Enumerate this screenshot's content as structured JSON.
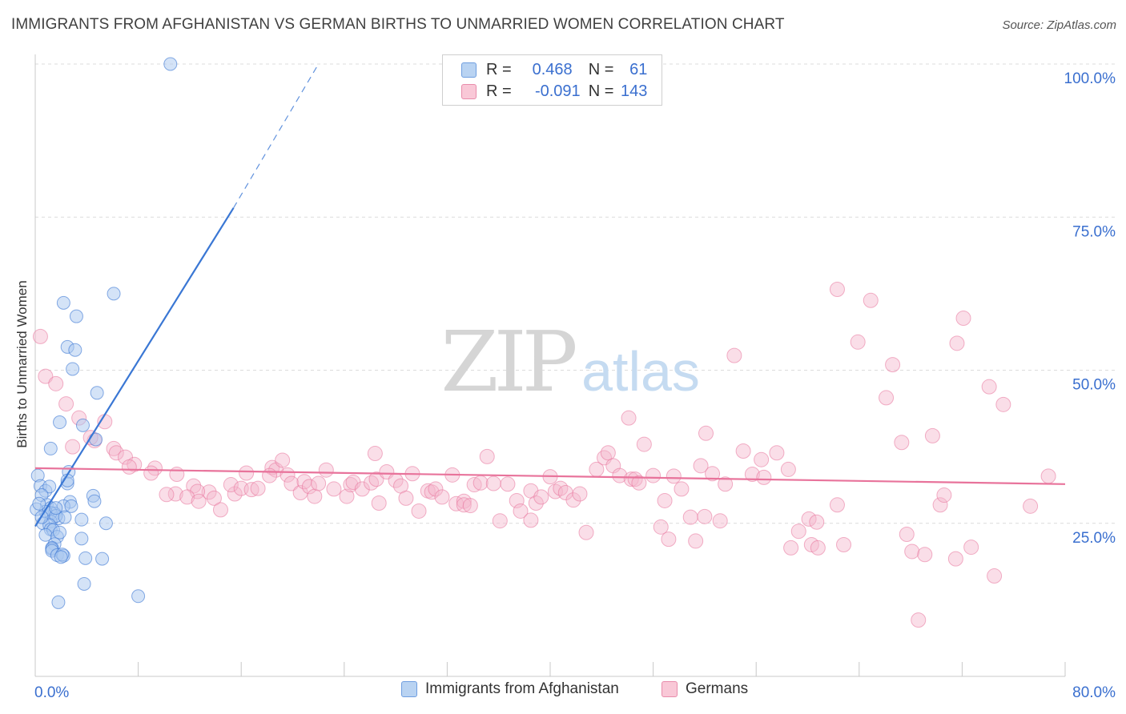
{
  "title": "IMMIGRANTS FROM AFGHANISTAN VS GERMAN BIRTHS TO UNMARRIED WOMEN CORRELATION CHART",
  "source": "Source: ZipAtlas.com",
  "watermark": {
    "zip": "ZIP",
    "atlas": "atlas"
  },
  "legend": {
    "r_label": "R =",
    "n_label": "N =",
    "series1": {
      "r": "0.468",
      "n": "61"
    },
    "series2": {
      "r": "-0.091",
      "n": "143"
    }
  },
  "colors": {
    "blue": "#3a77d4",
    "blue_fill": "#a9c8ef",
    "blue_swatch": "#b9d3f2",
    "pink": "#e8739b",
    "pink_fill": "#f4b6cb",
    "pink_swatch": "#f9c8d7",
    "accent_text": "#3a6fcf"
  },
  "chart_data": {
    "type": "scatter",
    "title": "IMMIGRANTS FROM AFGHANISTAN VS GERMAN BIRTHS TO UNMARRIED WOMEN CORRELATION CHART",
    "xlabel": "",
    "ylabel": "Births to Unmarried Women",
    "xlim": [
      0,
      80
    ],
    "ylim": [
      0,
      100
    ],
    "x_tick_labels": [
      "0.0%",
      "80.0%"
    ],
    "y_tick_labels": [
      "25.0%",
      "50.0%",
      "75.0%",
      "100.0%"
    ],
    "y_ticks": [
      25,
      50,
      75,
      100
    ],
    "x_ticks": [
      0,
      8,
      16,
      24,
      32,
      40,
      48,
      56,
      64,
      72,
      80
    ],
    "series": [
      {
        "name": "Immigrants from Afghanistan",
        "r": 0.468,
        "n": 61,
        "trend": {
          "x0": 0.0,
          "y0": 24.5,
          "x1": 15.4,
          "y1": 76.5,
          "dash_to_x": 22.0,
          "dash_to_y": 100.0
        },
        "points": [
          [
            10.5,
            100.0
          ],
          [
            6.1,
            62.5
          ],
          [
            2.2,
            61.0
          ],
          [
            3.2,
            58.8
          ],
          [
            2.5,
            53.8
          ],
          [
            3.1,
            53.3
          ],
          [
            2.9,
            50.2
          ],
          [
            4.8,
            46.3
          ],
          [
            1.9,
            41.5
          ],
          [
            3.7,
            41.0
          ],
          [
            4.7,
            38.7
          ],
          [
            1.2,
            37.2
          ],
          [
            2.6,
            33.4
          ],
          [
            0.2,
            32.8
          ],
          [
            0.4,
            31.1
          ],
          [
            0.8,
            30.3
          ],
          [
            1.1,
            31.0
          ],
          [
            2.5,
            31.5
          ],
          [
            2.5,
            32.0
          ],
          [
            4.5,
            29.5
          ],
          [
            2.7,
            28.5
          ],
          [
            0.5,
            29.6
          ],
          [
            0.9,
            28.0
          ],
          [
            1.2,
            27.5
          ],
          [
            2.2,
            27.8
          ],
          [
            4.6,
            28.6
          ],
          [
            1.5,
            26.6
          ],
          [
            1.8,
            25.8
          ],
          [
            1.2,
            26.7
          ],
          [
            0.8,
            26.9
          ],
          [
            1.2,
            25.3
          ],
          [
            1.6,
            26.2
          ],
          [
            2.3,
            26.0
          ],
          [
            0.6,
            25.0
          ],
          [
            1.1,
            24.7
          ],
          [
            3.6,
            25.6
          ],
          [
            2.8,
            27.8
          ],
          [
            1.6,
            27.5
          ],
          [
            5.5,
            25.0
          ],
          [
            1.2,
            24.0
          ],
          [
            1.4,
            23.9
          ],
          [
            0.8,
            23.1
          ],
          [
            1.7,
            22.8
          ],
          [
            3.6,
            22.5
          ],
          [
            1.9,
            23.5
          ],
          [
            1.5,
            21.6
          ],
          [
            1.3,
            21.0
          ],
          [
            1.3,
            20.8
          ],
          [
            1.3,
            20.5
          ],
          [
            1.7,
            19.8
          ],
          [
            2.2,
            19.7
          ],
          [
            2.1,
            19.9
          ],
          [
            3.9,
            19.3
          ],
          [
            5.2,
            19.2
          ],
          [
            2.0,
            19.5
          ],
          [
            3.8,
            15.1
          ],
          [
            1.8,
            12.1
          ],
          [
            8.0,
            13.1
          ],
          [
            0.1,
            27.3
          ],
          [
            0.3,
            28.2
          ],
          [
            0.5,
            26.0
          ]
        ]
      },
      {
        "name": "Germans",
        "r": -0.091,
        "n": 143,
        "trend": {
          "x0": 0.0,
          "y0": 34.0,
          "x1": 80.0,
          "y1": 31.4
        },
        "points": [
          [
            0.4,
            55.5
          ],
          [
            0.8,
            49.0
          ],
          [
            1.6,
            47.8
          ],
          [
            2.4,
            44.5
          ],
          [
            3.4,
            42.2
          ],
          [
            5.4,
            41.6
          ],
          [
            2.9,
            37.5
          ],
          [
            4.6,
            38.5
          ],
          [
            4.3,
            39.0
          ],
          [
            6.1,
            37.2
          ],
          [
            6.3,
            36.5
          ],
          [
            7.0,
            35.8
          ],
          [
            7.7,
            34.6
          ],
          [
            7.3,
            34.2
          ],
          [
            9.3,
            34.0
          ],
          [
            9.0,
            33.2
          ],
          [
            11.0,
            33.0
          ],
          [
            12.3,
            31.1
          ],
          [
            13.5,
            30.1
          ],
          [
            10.9,
            29.8
          ],
          [
            10.2,
            29.7
          ],
          [
            12.6,
            30.2
          ],
          [
            11.8,
            29.3
          ],
          [
            12.7,
            28.6
          ],
          [
            13.9,
            29.1
          ],
          [
            14.4,
            27.2
          ],
          [
            15.5,
            29.8
          ],
          [
            15.2,
            31.3
          ],
          [
            16.4,
            33.2
          ],
          [
            16.0,
            30.7
          ],
          [
            16.8,
            30.5
          ],
          [
            17.3,
            30.7
          ],
          [
            18.4,
            34.1
          ],
          [
            18.7,
            33.7
          ],
          [
            18.2,
            32.8
          ],
          [
            19.2,
            35.3
          ],
          [
            19.6,
            32.9
          ],
          [
            19.9,
            31.5
          ],
          [
            20.6,
            30.0
          ],
          [
            20.9,
            31.8
          ],
          [
            21.3,
            31.0
          ],
          [
            21.7,
            29.4
          ],
          [
            22.0,
            31.5
          ],
          [
            22.6,
            33.7
          ],
          [
            23.2,
            30.6
          ],
          [
            24.2,
            29.4
          ],
          [
            24.5,
            31.3
          ],
          [
            24.7,
            31.7
          ],
          [
            25.4,
            30.6
          ],
          [
            26.1,
            31.6
          ],
          [
            26.4,
            36.4
          ],
          [
            26.5,
            32.2
          ],
          [
            26.7,
            28.3
          ],
          [
            27.3,
            33.4
          ],
          [
            28.0,
            32.0
          ],
          [
            28.4,
            31.1
          ],
          [
            28.8,
            29.1
          ],
          [
            29.3,
            33.1
          ],
          [
            29.8,
            27.0
          ],
          [
            30.5,
            30.3
          ],
          [
            30.8,
            30.1
          ],
          [
            31.1,
            30.6
          ],
          [
            31.6,
            29.3
          ],
          [
            32.4,
            32.9
          ],
          [
            32.7,
            28.2
          ],
          [
            33.3,
            28.6
          ],
          [
            33.3,
            28.0
          ],
          [
            33.8,
            27.9
          ],
          [
            34.1,
            31.3
          ],
          [
            34.6,
            31.6
          ],
          [
            35.1,
            35.9
          ],
          [
            35.6,
            31.5
          ],
          [
            36.1,
            25.4
          ],
          [
            36.7,
            31.4
          ],
          [
            37.4,
            28.7
          ],
          [
            37.7,
            27.0
          ],
          [
            38.5,
            25.5
          ],
          [
            38.5,
            30.3
          ],
          [
            38.9,
            28.3
          ],
          [
            39.3,
            29.3
          ],
          [
            40.0,
            32.6
          ],
          [
            40.4,
            30.2
          ],
          [
            40.8,
            30.7
          ],
          [
            41.2,
            30.0
          ],
          [
            41.8,
            28.8
          ],
          [
            42.8,
            23.5
          ],
          [
            42.3,
            29.8
          ],
          [
            43.6,
            33.8
          ],
          [
            44.2,
            35.7
          ],
          [
            44.5,
            36.5
          ],
          [
            44.9,
            34.4
          ],
          [
            45.4,
            32.8
          ],
          [
            46.1,
            42.2
          ],
          [
            46.3,
            32.2
          ],
          [
            46.6,
            32.2
          ],
          [
            46.9,
            31.6
          ],
          [
            47.3,
            37.9
          ],
          [
            48.0,
            32.8
          ],
          [
            48.6,
            24.4
          ],
          [
            48.9,
            28.7
          ],
          [
            49.2,
            22.4
          ],
          [
            49.6,
            32.7
          ],
          [
            50.2,
            30.6
          ],
          [
            50.9,
            26.0
          ],
          [
            51.3,
            22.1
          ],
          [
            52.0,
            26.1
          ],
          [
            51.7,
            34.4
          ],
          [
            52.1,
            39.7
          ],
          [
            52.6,
            33.1
          ],
          [
            53.2,
            25.4
          ],
          [
            53.6,
            31.4
          ],
          [
            54.3,
            52.4
          ],
          [
            55.0,
            36.8
          ],
          [
            55.7,
            33.0
          ],
          [
            56.4,
            35.4
          ],
          [
            56.6,
            32.5
          ],
          [
            57.6,
            36.5
          ],
          [
            58.5,
            33.8
          ],
          [
            58.7,
            21.0
          ],
          [
            59.3,
            23.7
          ],
          [
            60.1,
            25.7
          ],
          [
            60.3,
            21.5
          ],
          [
            60.7,
            25.2
          ],
          [
            60.8,
            21.0
          ],
          [
            62.3,
            28.0
          ],
          [
            62.8,
            21.5
          ],
          [
            62.3,
            63.2
          ],
          [
            63.9,
            54.6
          ],
          [
            64.9,
            61.4
          ],
          [
            66.1,
            45.5
          ],
          [
            66.6,
            50.9
          ],
          [
            67.3,
            38.2
          ],
          [
            67.7,
            23.2
          ],
          [
            68.1,
            20.4
          ],
          [
            68.6,
            9.2
          ],
          [
            69.1,
            19.9
          ],
          [
            69.7,
            39.3
          ],
          [
            70.3,
            28.0
          ],
          [
            70.6,
            29.6
          ],
          [
            71.5,
            19.2
          ],
          [
            71.6,
            54.4
          ],
          [
            72.1,
            58.5
          ],
          [
            72.7,
            21.1
          ],
          [
            74.1,
            47.3
          ],
          [
            74.5,
            16.4
          ],
          [
            75.2,
            44.4
          ],
          [
            77.3,
            27.8
          ],
          [
            78.7,
            32.7
          ]
        ]
      }
    ]
  }
}
